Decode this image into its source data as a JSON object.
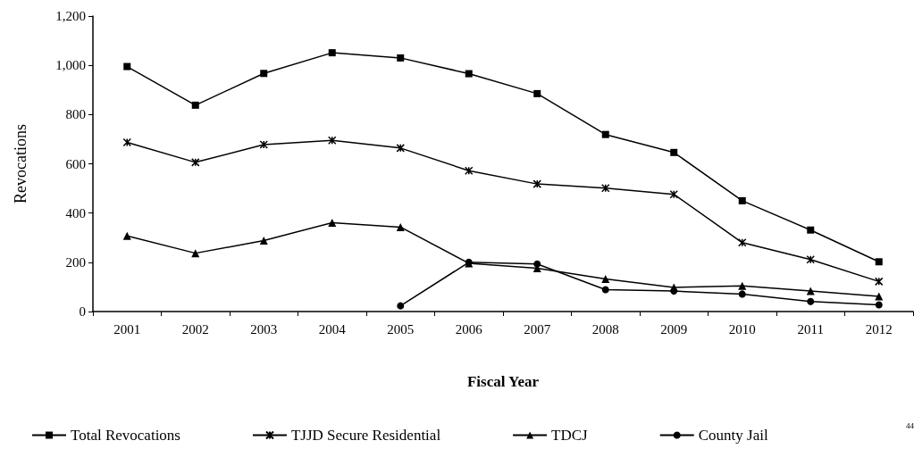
{
  "chart_data": {
    "type": "line",
    "xlabel": "Fiscal Year",
    "ylabel": "Revocations",
    "categories": [
      "2001",
      "2002",
      "2003",
      "2004",
      "2005",
      "2006",
      "2007",
      "2008",
      "2009",
      "2010",
      "2011",
      "2012"
    ],
    "series": [
      {
        "name": "Total Revocations",
        "color": "#000000",
        "marker": "square",
        "values": [
          995,
          838,
          967,
          1051,
          1030,
          966,
          885,
          719,
          646,
          450,
          331,
          202
        ]
      },
      {
        "name": "TJJD Secure Residential",
        "color": "#000000",
        "marker": "cross",
        "values": [
          687,
          606,
          678,
          695,
          664,
          572,
          518,
          501,
          476,
          280,
          211,
          122
        ]
      },
      {
        "name": "TDCJ",
        "color": "#000000",
        "marker": "triangle",
        "values": [
          307,
          237,
          288,
          361,
          343,
          196,
          176,
          132,
          98,
          104,
          83,
          62
        ]
      },
      {
        "name": "County Jail",
        "color": "#000000",
        "marker": "circle",
        "values": [
          null,
          null,
          null,
          null,
          23,
          200,
          193,
          89,
          83,
          71,
          41,
          27
        ]
      }
    ],
    "ylim": [
      0,
      1200
    ],
    "yticks": [
      0,
      200,
      400,
      600,
      800,
      {
        "value": 1000,
        "label": "1,000"
      },
      {
        "value": 1200,
        "label": "1,200"
      }
    ],
    "grid": false,
    "legend": "bottom",
    "line_style": "solid",
    "annotations": [
      "44"
    ]
  }
}
